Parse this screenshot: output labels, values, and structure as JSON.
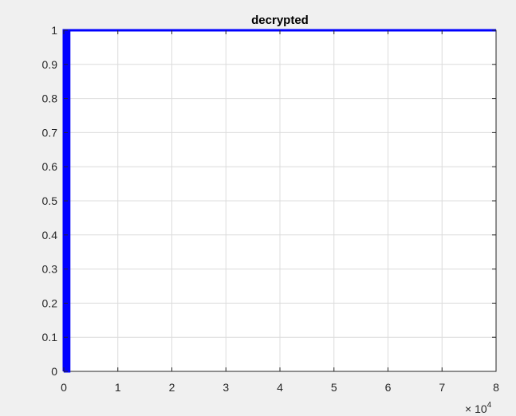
{
  "chart_data": {
    "type": "line",
    "title": "decrypted",
    "xlabel": "",
    "ylabel": "",
    "xlim": [
      0,
      80000
    ],
    "ylim": [
      0,
      1
    ],
    "x_exponent_label": "× 10",
    "x_exponent": "4",
    "xticks": [
      0,
      10000,
      20000,
      30000,
      40000,
      50000,
      60000,
      70000,
      80000
    ],
    "xtick_labels": [
      "0",
      "1",
      "2",
      "3",
      "4",
      "5",
      "6",
      "7",
      "8"
    ],
    "yticks": [
      0,
      0.1,
      0.2,
      0.3,
      0.4,
      0.5,
      0.6,
      0.7,
      0.8,
      0.9,
      1
    ],
    "ytick_labels": [
      "0",
      "0.1",
      "0.2",
      "0.3",
      "0.4",
      "0.5",
      "0.6",
      "0.7",
      "0.8",
      "0.9",
      "1"
    ],
    "grid": true,
    "series": [
      {
        "color": "#0000ff",
        "x": [
          0,
          0,
          200,
          200,
          400,
          400,
          800,
          800,
          1000,
          1000,
          80000
        ],
        "y": [
          0,
          1,
          1,
          0,
          0,
          1,
          1,
          0,
          0,
          1,
          1
        ]
      }
    ]
  }
}
